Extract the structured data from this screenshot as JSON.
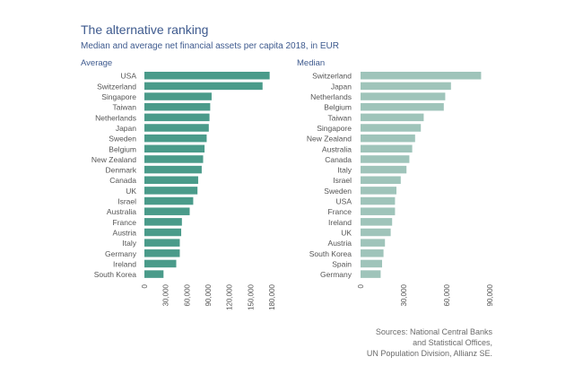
{
  "title": "The alternative ranking",
  "subtitle": "Median and average net financial assets per capita 2018, in EUR",
  "source_lines": [
    "Sources: National Central Banks",
    "and Statistical Offices,",
    "UN Population Division, Allianz SE."
  ],
  "colors": {
    "average": "#4a9b8a",
    "median": "#9fc4ba",
    "title": "#3e5a8e",
    "text": "#555555"
  },
  "chart_data": [
    {
      "type": "bar",
      "orientation": "horizontal",
      "title": "Average",
      "categories": [
        "USA",
        "Switzerland",
        "Singapore",
        "Taiwan",
        "Netherlands",
        "Japan",
        "Sweden",
        "Belgium",
        "New Zealand",
        "Denmark",
        "Canada",
        "UK",
        "Israel",
        "Australia",
        "France",
        "Austria",
        "Italy",
        "Germany",
        "Ireland",
        "South Korea"
      ],
      "values": [
        177000,
        167000,
        95000,
        93000,
        92000,
        91000,
        88000,
        85000,
        83000,
        81000,
        76000,
        75000,
        69000,
        64000,
        53000,
        52000,
        50000,
        50000,
        45000,
        27000
      ],
      "xlim": [
        0,
        180000
      ],
      "ticks": [
        "0",
        "30,000",
        "60,000",
        "90,000",
        "120,000",
        "150,000",
        "180,000"
      ],
      "tick_values": [
        0,
        30000,
        60000,
        90000,
        120000,
        150000,
        180000
      ]
    },
    {
      "type": "bar",
      "orientation": "horizontal",
      "title": "Median",
      "categories": [
        "Switzerland",
        "Japan",
        "Netherlands",
        "Belgium",
        "Taiwan",
        "Singapore",
        "New Zealand",
        "Australia",
        "Canada",
        "Italy",
        "Israel",
        "Sweden",
        "USA",
        "France",
        "Ireland",
        "UK",
        "Austria",
        "South Korea",
        "Spain",
        "Germany"
      ],
      "values": [
        84000,
        63000,
        59000,
        58000,
        44000,
        42000,
        38000,
        36000,
        34000,
        32000,
        28000,
        25000,
        24000,
        24000,
        22000,
        21000,
        17000,
        16000,
        15000,
        14000
      ],
      "xlim": [
        0,
        90000
      ],
      "ticks": [
        "0",
        "30,000",
        "60,000",
        "90,000"
      ],
      "tick_values": [
        0,
        30000,
        60000,
        90000
      ]
    }
  ]
}
